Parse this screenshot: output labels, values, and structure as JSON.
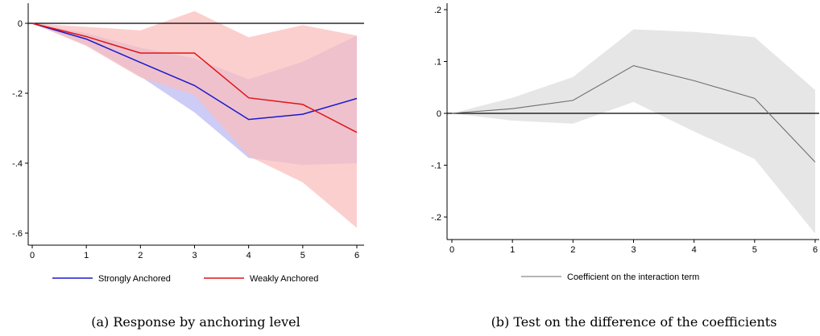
{
  "chart_data": [
    {
      "type": "line",
      "x": [
        0,
        1,
        2,
        3,
        4,
        5,
        6
      ],
      "ylim": [
        -0.62,
        0.06
      ],
      "xlim": [
        -0.1,
        6.1
      ],
      "yticks": [
        0,
        -0.2,
        -0.4,
        -0.6
      ],
      "ytick_labels": [
        "0",
        "-.2",
        "-.4",
        "-.6"
      ],
      "xticks": [
        0,
        1,
        2,
        3,
        4,
        5,
        6
      ],
      "xtick_labels": [
        "0",
        "1",
        "2",
        "3",
        "4",
        "5",
        "6"
      ],
      "zero_line": true,
      "grid": false,
      "legend_position": "bottom",
      "caption": "(a) Response by anchoring level",
      "series": [
        {
          "name": "Strongly Anchored",
          "color": "#1a1acc",
          "band_color": "#b8b8f2",
          "values": [
            0,
            -0.045,
            -0.112,
            -0.178,
            -0.275,
            -0.26,
            -0.215
          ],
          "lower": [
            0,
            -0.062,
            -0.152,
            -0.255,
            -0.385,
            -0.405,
            -0.4
          ],
          "upper": [
            0,
            -0.028,
            -0.07,
            -0.1,
            -0.16,
            -0.11,
            -0.035
          ]
        },
        {
          "name": "Weakly Anchored",
          "color": "#e01515",
          "band_color": "#fbbcbc",
          "values": [
            0,
            -0.038,
            -0.085,
            -0.085,
            -0.213,
            -0.232,
            -0.312
          ],
          "lower": [
            0,
            -0.065,
            -0.155,
            -0.205,
            -0.38,
            -0.455,
            -0.585
          ],
          "upper": [
            0,
            -0.01,
            -0.02,
            0.035,
            -0.04,
            -0.005,
            -0.035
          ]
        }
      ]
    },
    {
      "type": "line",
      "x": [
        0,
        1,
        2,
        3,
        4,
        5,
        6
      ],
      "ylim": [
        -0.245,
        0.21
      ],
      "xlim": [
        -0.1,
        6.1
      ],
      "yticks": [
        0.2,
        0.1,
        0,
        -0.1,
        -0.2
      ],
      "ytick_labels": [
        ".2",
        ".1",
        "0",
        "-.1",
        "-.2"
      ],
      "xticks": [
        0,
        1,
        2,
        3,
        4,
        5,
        6
      ],
      "xtick_labels": [
        "0",
        "1",
        "2",
        "3",
        "4",
        "5",
        "6"
      ],
      "zero_line": true,
      "grid": false,
      "legend_position": "bottom",
      "caption": "(b) Test on the difference of the coefficients",
      "series": [
        {
          "name": "Coefficient on the interaction term",
          "color": "#6e6e6e",
          "band_color": "#e6e6e6",
          "values": [
            0,
            0.009,
            0.025,
            0.092,
            0.063,
            0.029,
            -0.094
          ],
          "lower": [
            0,
            -0.014,
            -0.02,
            0.022,
            -0.035,
            -0.088,
            -0.232
          ],
          "upper": [
            0,
            0.03,
            0.07,
            0.162,
            0.157,
            0.147,
            0.045
          ]
        }
      ]
    }
  ]
}
